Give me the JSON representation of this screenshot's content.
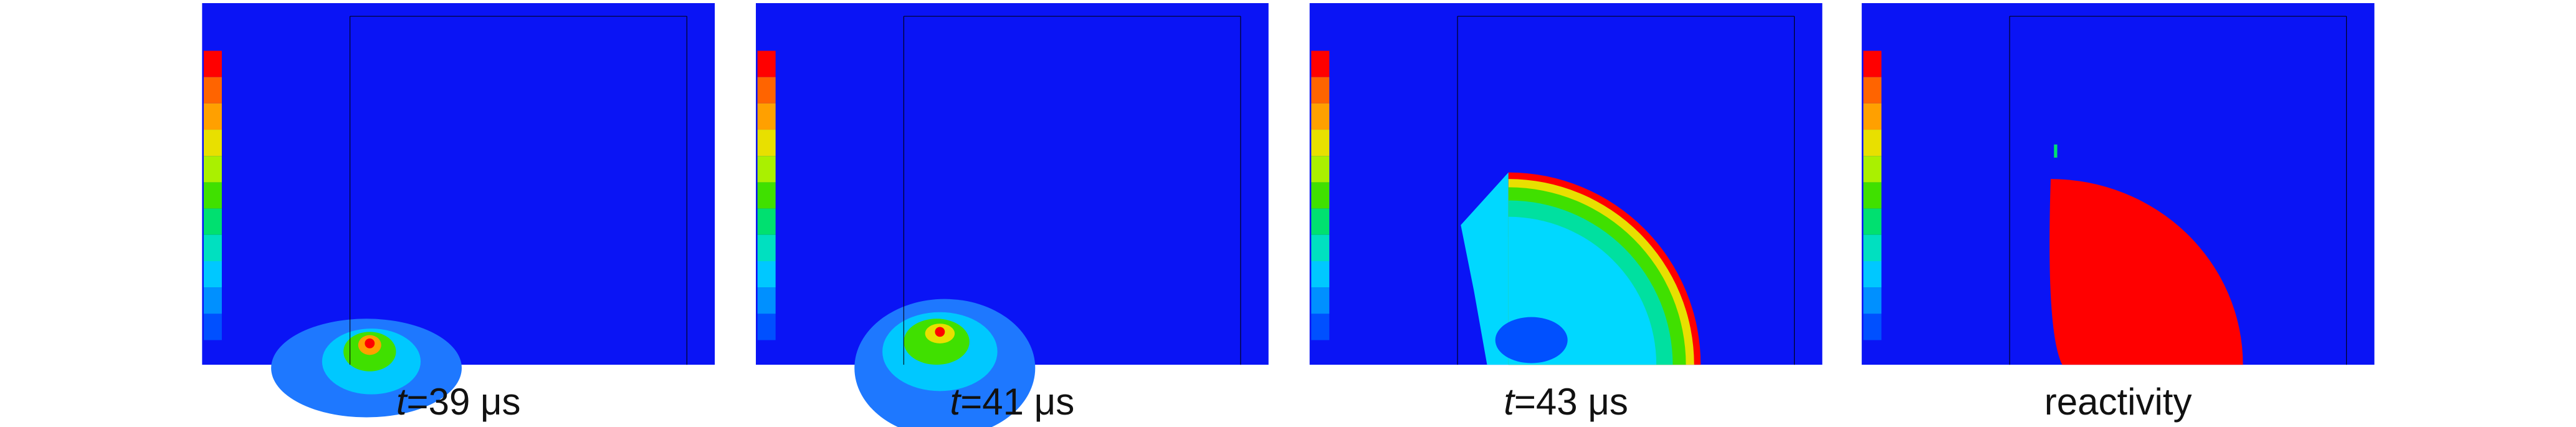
{
  "panels": [
    {
      "caption": {
        "variable": "t",
        "rest": "=39 μs"
      }
    },
    {
      "caption": {
        "variable": "t",
        "rest": "=41 μs"
      }
    },
    {
      "caption": {
        "variable": "t",
        "rest": "=43 μs"
      }
    },
    {
      "caption": {
        "text": "reactivity"
      }
    }
  ]
}
